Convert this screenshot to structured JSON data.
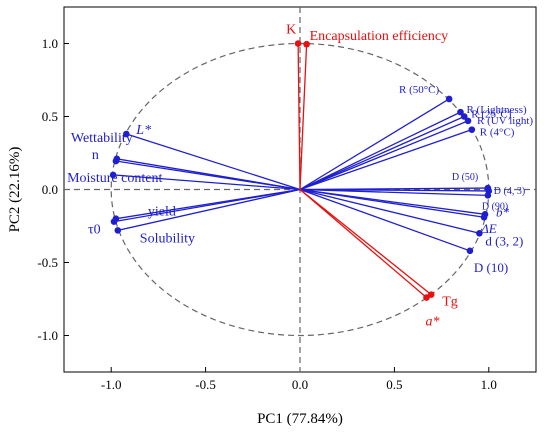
{
  "chart_data": {
    "type": "biplot",
    "xlabel": "PC1 (77.84%)",
    "ylabel": "PC2 (22.16%)",
    "xlim": [
      -1.25,
      1.25
    ],
    "ylim": [
      -1.25,
      1.25
    ],
    "xticks": [
      "-1.0",
      "-0.5",
      "0.0",
      "0.5",
      "1.0"
    ],
    "yticks": [
      "-1.0",
      "-0.5",
      "0.0",
      "0.5",
      "1.0"
    ],
    "xtick_values": [
      -1.0,
      -0.5,
      0.0,
      0.5,
      1.0
    ],
    "ytick_values": [
      -1.0,
      -0.5,
      0.0,
      0.5,
      1.0
    ],
    "colors": {
      "blue": "#1f1fd0",
      "red": "#e81010"
    },
    "series": [
      {
        "color": "blue",
        "loadings": [
          {
            "label": "L*",
            "x": -0.92,
            "y": 0.38
          },
          {
            "label": "Wettability",
            "x": -0.97,
            "y": 0.21
          },
          {
            "label": "n",
            "x": -0.975,
            "y": 0.195
          },
          {
            "label": "Moisture content",
            "x": -0.99,
            "y": 0.1
          },
          {
            "label": "yield",
            "x": -0.975,
            "y": -0.2
          },
          {
            "label": "τ0",
            "x": -0.985,
            "y": -0.22
          },
          {
            "label": "Solubility",
            "x": -0.965,
            "y": -0.28
          },
          {
            "label": "R (50°C)",
            "x": 0.79,
            "y": 0.62
          },
          {
            "label": "R (Lightness)",
            "x": 0.85,
            "y": 0.53
          },
          {
            "label": "R (25°C)",
            "x": 0.87,
            "y": 0.5
          },
          {
            "label": "R (UV light)",
            "x": 0.89,
            "y": 0.47
          },
          {
            "label": "R (4°C)",
            "x": 0.91,
            "y": 0.41
          },
          {
            "label": "D (50)",
            "x": 0.995,
            "y": 0.01
          },
          {
            "label": "D (4, 3)",
            "x": 1.0,
            "y": -0.01
          },
          {
            "label": "D (90)",
            "x": 0.995,
            "y": -0.04
          },
          {
            "label": "b*",
            "x": 0.98,
            "y": -0.17
          },
          {
            "label": "ΔE",
            "x": 0.975,
            "y": -0.19
          },
          {
            "label": "d (3, 2)",
            "x": 0.95,
            "y": -0.3
          },
          {
            "label": "D (10)",
            "x": 0.9,
            "y": -0.42
          }
        ]
      },
      {
        "color": "red",
        "loadings": [
          {
            "label": "K",
            "x": -0.01,
            "y": 1.0
          },
          {
            "label": "Encapsulation efficiency",
            "x": 0.035,
            "y": 0.995
          },
          {
            "label": "Tg",
            "x": 0.695,
            "y": -0.72
          },
          {
            "label": "a*",
            "x": 0.67,
            "y": -0.74
          }
        ]
      }
    ]
  }
}
